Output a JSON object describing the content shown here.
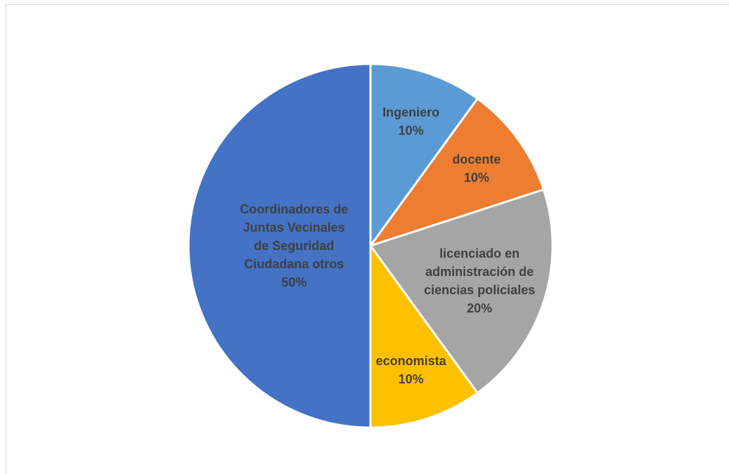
{
  "chart_data": {
    "type": "pie",
    "categories": [
      "Ingeniero",
      "docente",
      "licenciado en administración de ciencias policiales",
      "economista",
      "Coordinadores de Juntas Vecinales de Seguridad Ciudadana otros"
    ],
    "values": [
      10,
      10,
      20,
      10,
      50
    ],
    "value_labels": [
      "10%",
      "10%",
      "20%",
      "10%",
      "50%"
    ],
    "colors": [
      "#5b9bd5",
      "#ed7d31",
      "#a5a5a5",
      "#ffc000",
      "#4472c4"
    ]
  }
}
